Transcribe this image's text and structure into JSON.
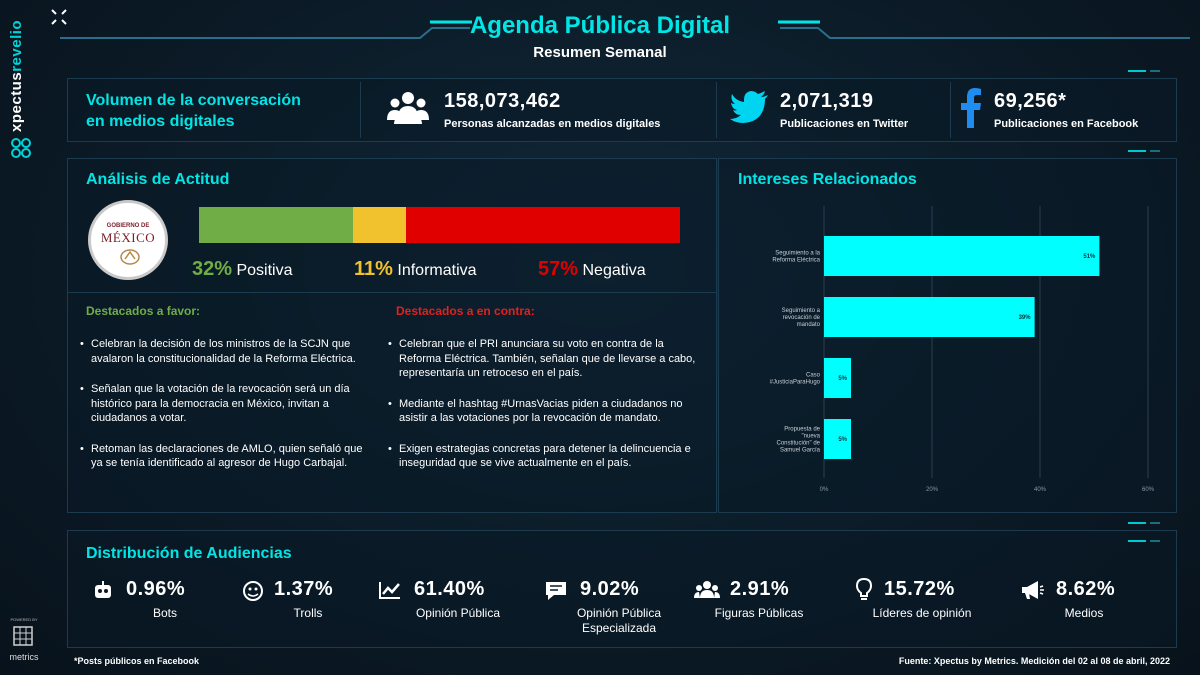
{
  "brand": {
    "part1": "xpectus",
    "part2": "revelio",
    "powered": "POWERED BY",
    "metrics": "metrics"
  },
  "header": {
    "title": "Agenda Pública Digital",
    "subtitle": "Resumen Semanal"
  },
  "volume": {
    "title_line1": "Volumen de la conversación",
    "title_line2": "en medios digitales",
    "people_value": "158,073,462",
    "people_label": "Personas alcanzadas en medios digitales",
    "twitter_value": "2,071,319",
    "twitter_label": "Publicaciones en Twitter",
    "facebook_value": "69,256*",
    "facebook_label": "Publicaciones en Facebook"
  },
  "attitude": {
    "title": "Análisis de Actitud",
    "seal_top": "GOBIERNO DE",
    "seal_main": "MÉXICO",
    "positive": {
      "value": "32%",
      "label": "Positiva",
      "share": 32,
      "color": "#70ad47"
    },
    "informative": {
      "value": "11%",
      "label": "Informativa",
      "share": 11,
      "color": "#f2c12e"
    },
    "negative": {
      "value": "57%",
      "label": "Negativa",
      "share": 57,
      "color": "#e00000"
    }
  },
  "favor": {
    "title": "Destacados a favor:",
    "items": [
      "Celebran la decisión de los ministros de la SCJN que avalaron la constitucionalidad de la Reforma Eléctrica.",
      "Señalan que la votación de la revocación será un día histórico para la democracia en México, invitan a ciudadanos a votar.",
      "Retoman las declaraciones de AMLO, quien señaló que ya se tenía identificado al agresor de Hugo Carbajal."
    ]
  },
  "contra": {
    "title": "Destacados a en contra:",
    "items": [
      "Celebran que el PRI anunciara su voto en contra de la Reforma Eléctrica. También, señalan que de llevarse a cabo, representaría un retroceso en el país.",
      "Mediante el hashtag #UrnasVacias piden a ciudadanos no asistir a las votaciones por la revocación de mandato.",
      "Exigen estrategias concretas para detener la delincuencia e inseguridad que se vive actualmente en el país."
    ]
  },
  "interests": {
    "title": "Intereses Relacionados"
  },
  "chart_data": {
    "type": "bar",
    "orientation": "horizontal",
    "title": "Intereses Relacionados",
    "categories": [
      "Seguimiento a la Reforma Eléctrica",
      "Seguimiento a revocación de mandato",
      "Caso #JusticiaParaHugo",
      "Propuesta de \"nueva Constitución\" de Samuel García"
    ],
    "values": [
      51,
      39,
      5,
      5
    ],
    "value_labels": [
      "51%",
      "39%",
      "5%",
      "5%"
    ],
    "xlim": [
      0,
      60
    ],
    "xticks": [
      "0%",
      "20%",
      "40%",
      "60%"
    ],
    "bar_color": "#00ffff",
    "grid": true
  },
  "audiences": {
    "title": "Distribución de Audiencias",
    "items": [
      {
        "icon": "robot-icon",
        "value": "0.96%",
        "label": "Bots"
      },
      {
        "icon": "troll-face-icon",
        "value": "1.37%",
        "label": "Trolls"
      },
      {
        "icon": "line-chart-icon",
        "value": "61.40%",
        "label": "Opinión Pública"
      },
      {
        "icon": "speech-bubble-icon",
        "value": "9.02%",
        "label": "Opinión Pública Especializada"
      },
      {
        "icon": "group-icon",
        "value": "2.91%",
        "label": "Figuras Públicas"
      },
      {
        "icon": "lightbulb-icon",
        "value": "15.72%",
        "label": "Líderes de opinión"
      },
      {
        "icon": "megaphone-icon",
        "value": "8.62%",
        "label": "Medios"
      }
    ]
  },
  "footer": {
    "note": "*Posts públicos en Facebook",
    "source": "Fuente: Xpectus by Metrics. Medición del 02 al 08 de abril, 2022"
  }
}
